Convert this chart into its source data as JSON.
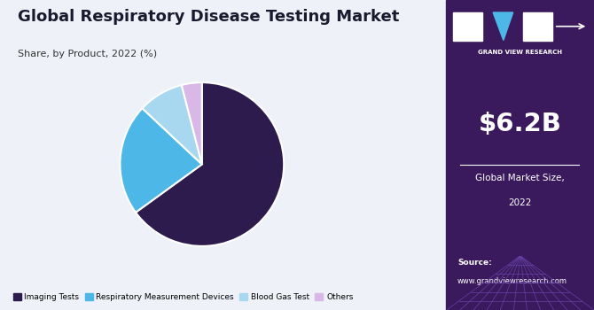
{
  "title": "Global Respiratory Disease Testing Market",
  "subtitle": "Share, by Product, 2022 (%)",
  "slices": [
    {
      "label": "Imaging Tests",
      "value": 65,
      "color": "#2d1b4e"
    },
    {
      "label": "Respiratory Measurement Devices",
      "value": 22,
      "color": "#4db8e8"
    },
    {
      "label": "Blood Gas Test",
      "value": 9,
      "color": "#a8d8f0"
    },
    {
      "label": "Others",
      "value": 4,
      "color": "#d9b8e8"
    }
  ],
  "sidebar_bg": "#3a1a5c",
  "sidebar_value": "$6.2B",
  "sidebar_label1": "Global Market Size,",
  "sidebar_label2": "2022",
  "source_line1": "Source:",
  "source_line2": "www.grandviewresearch.com",
  "main_bg": "#eef2f8",
  "title_color": "#1a1a2e",
  "subtitle_color": "#333333",
  "legend_colors": [
    "#2d1b4e",
    "#4db8e8",
    "#a8d8f0",
    "#d9b8e8"
  ],
  "legend_labels": [
    "Imaging Tests",
    "Respiratory Measurement Devices",
    "Blood Gas Test",
    "Others"
  ],
  "grid_bg": "#4a2a7a",
  "grid_line_color": "#6644aa"
}
